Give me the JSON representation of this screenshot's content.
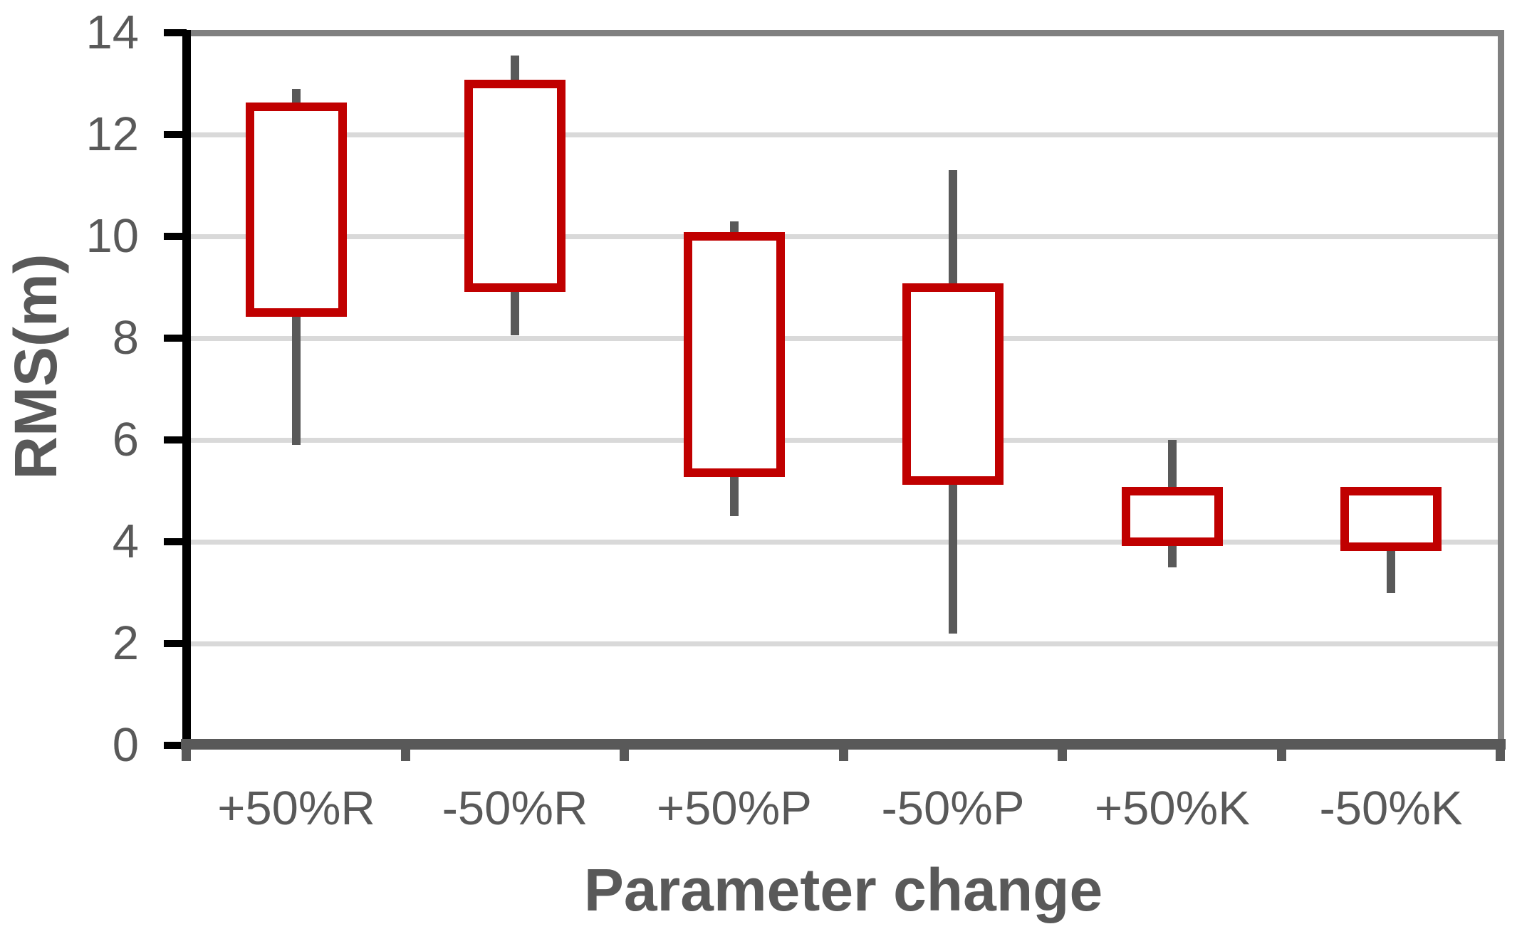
{
  "chart_data": {
    "type": "box",
    "title": "",
    "xlabel": "Parameter change",
    "ylabel": "RMS(m)",
    "categories": [
      "+50%R",
      "-50%R",
      "+50%P",
      "-50%P",
      "+50%K",
      "-50%K"
    ],
    "y_ticks": [
      0,
      2,
      4,
      6,
      8,
      10,
      12,
      14
    ],
    "ylim": [
      0,
      14
    ],
    "gridlines": [
      2,
      4,
      6,
      8,
      10,
      12
    ],
    "grid": "horizontal",
    "legend_position": "none",
    "boxes": [
      {
        "category": "+50%R",
        "whisker_low": 5.9,
        "box_low": 8.5,
        "box_high": 12.55,
        "whisker_high": 12.9
      },
      {
        "category": "-50%R",
        "whisker_low": 8.05,
        "box_low": 9.0,
        "box_high": 13.0,
        "whisker_high": 13.55
      },
      {
        "category": "+50%P",
        "whisker_low": 4.5,
        "box_low": 5.35,
        "box_high": 10.0,
        "whisker_high": 10.3
      },
      {
        "category": "-50%P",
        "whisker_low": 2.2,
        "box_low": 5.2,
        "box_high": 9.0,
        "whisker_high": 11.3
      },
      {
        "category": "+50%K",
        "whisker_low": 3.5,
        "box_low": 4.0,
        "box_high": 5.0,
        "whisker_high": 6.0
      },
      {
        "category": "-50%K",
        "whisker_low": 3.0,
        "box_low": 3.9,
        "box_high": 5.0,
        "whisker_high": 5.0
      }
    ],
    "colors": {
      "box_stroke": "#C00000",
      "box_fill": "#FFFFFF",
      "whisker": "#595959",
      "gridline": "#D9D9D9",
      "plot_border": "#808080",
      "y_axis": "#000000",
      "x_axis": "#595959",
      "text": "#595959"
    }
  }
}
